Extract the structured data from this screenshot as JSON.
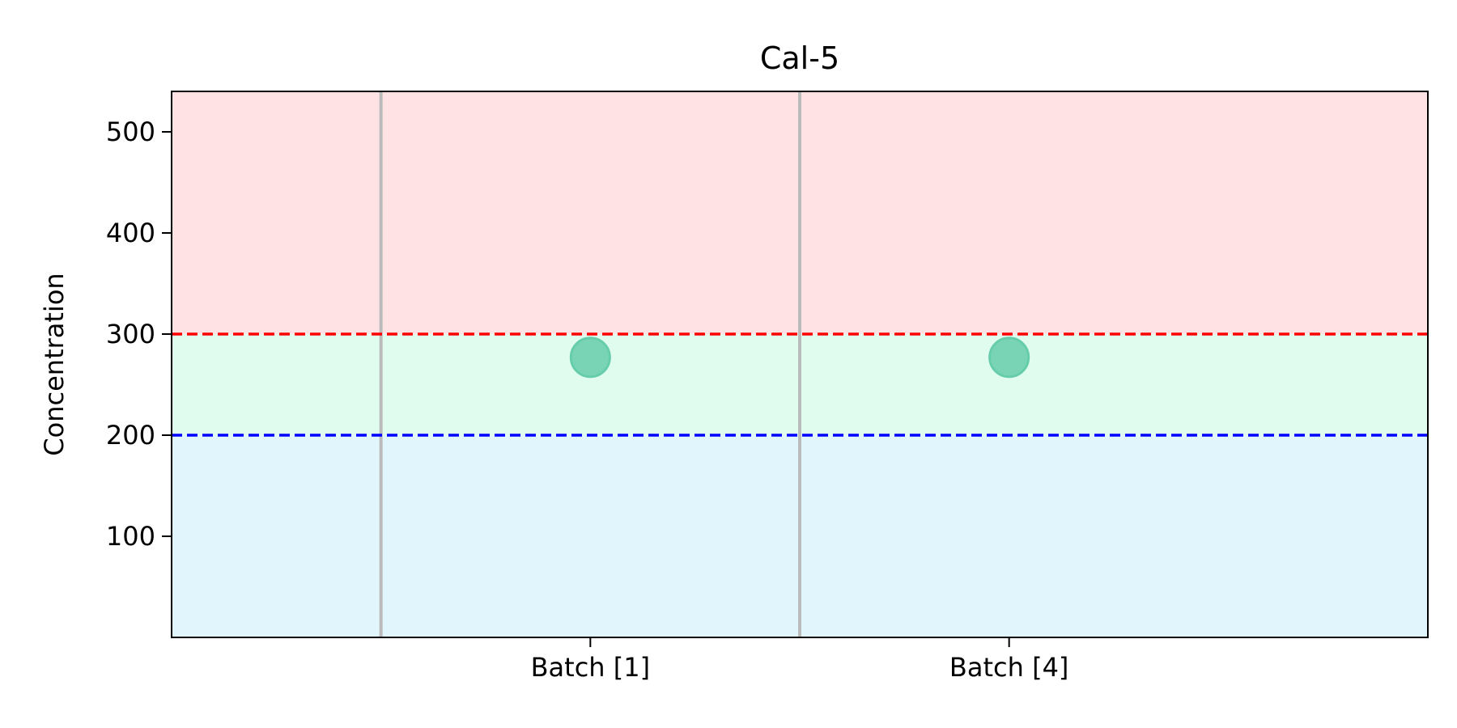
{
  "chart_data": {
    "type": "scatter",
    "title": "Cal-5",
    "xlabel": "",
    "ylabel": "Concentration",
    "categories": [
      "Batch [1]",
      "Batch [4]"
    ],
    "x_range": [
      -1,
      2
    ],
    "ylim": [
      0,
      540
    ],
    "yticks": [
      100,
      200,
      300,
      400,
      500
    ],
    "series": [
      {
        "values": [
          277,
          277
        ],
        "color": "#66CDAA"
      }
    ],
    "bands": [
      {
        "from": 0,
        "to": 200,
        "color": "#E0F5FC"
      },
      {
        "from": 200,
        "to": 300,
        "color": "#E0FCEF"
      },
      {
        "from": 300,
        "to": 540,
        "color": "#FEE2E4"
      }
    ],
    "reference_lines": [
      {
        "y": 300,
        "color": "#FF0000",
        "style": "dashed"
      },
      {
        "y": 200,
        "color": "#0000FF",
        "style": "dashed"
      }
    ],
    "separators": {
      "x": [
        -0.5,
        0.5
      ],
      "color": "#BBBBBB"
    },
    "grid": false,
    "legend": "none"
  }
}
